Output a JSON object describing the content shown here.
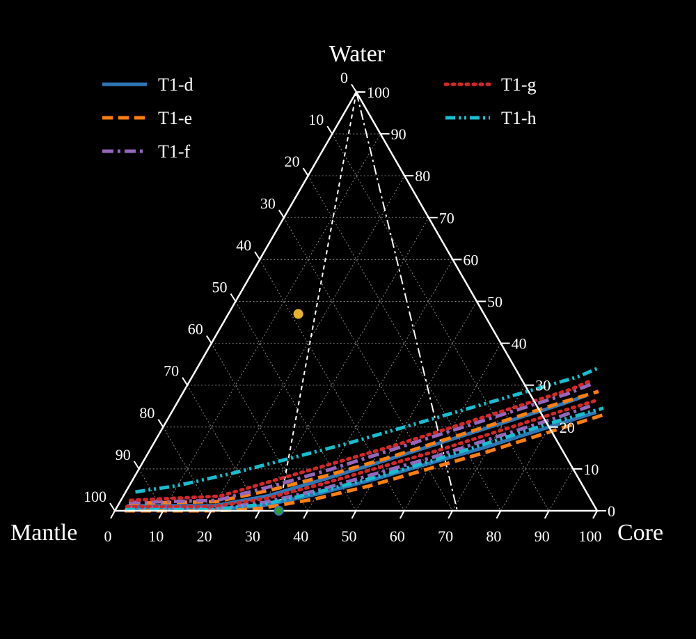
{
  "chart_data": {
    "type": "ternary",
    "axes": {
      "top": "Water",
      "left": "Mantle",
      "right": "Core"
    },
    "ticks": [
      0,
      10,
      20,
      30,
      40,
      50,
      60,
      70,
      80,
      90,
      100
    ],
    "grid": true,
    "reference_lines": [
      {
        "name": "ref-line-1",
        "style": "dashed",
        "color": "#ffffff",
        "points": [
          {
            "core": 0,
            "water": 100
          },
          {
            "core": 34,
            "water": 0
          }
        ]
      },
      {
        "name": "ref-line-2",
        "style": "dashdot",
        "color": "#ffffff",
        "points": [
          {
            "core": 0,
            "water": 100
          },
          {
            "core": 71,
            "water": 0
          }
        ]
      }
    ],
    "legend": {
      "placement": "top",
      "columns": 2
    },
    "series": [
      {
        "name": "T1-d",
        "color": "#2e77b7",
        "style": "solid",
        "curves": [
          [
            {
              "core": 2,
              "water": 0.5
            },
            {
              "core": 20,
              "water": 0.2
            },
            {
              "core": 30,
              "water": 1.2
            },
            {
              "core": 40,
              "water": 4
            },
            {
              "core": 50,
              "water": 7.5
            },
            {
              "core": 60,
              "water": 11.5
            },
            {
              "core": 70,
              "water": 15.5
            },
            {
              "core": 80,
              "water": 20
            },
            {
              "core": 88,
              "water": 23.5
            }
          ],
          [
            {
              "core": 2,
              "water": 1.2
            },
            {
              "core": 20,
              "water": 1.2
            },
            {
              "core": 30,
              "water": 3.6
            },
            {
              "core": 40,
              "water": 7.7
            },
            {
              "core": 50,
              "water": 12
            },
            {
              "core": 60,
              "water": 16.5
            },
            {
              "core": 70,
              "water": 21
            },
            {
              "core": 80,
              "water": 25.5
            },
            {
              "core": 84,
              "water": 27.5
            }
          ]
        ]
      },
      {
        "name": "T1-e",
        "color": "#ff7f0e",
        "style": "dashed",
        "curves": [
          [
            {
              "core": 2,
              "water": 0
            },
            {
              "core": 20,
              "water": 0
            },
            {
              "core": 25,
              "water": 0.2
            },
            {
              "core": 30,
              "water": 0.6
            },
            {
              "core": 40,
              "water": 2.8
            },
            {
              "core": 50,
              "water": 6
            },
            {
              "core": 60,
              "water": 10
            },
            {
              "core": 70,
              "water": 14
            },
            {
              "core": 80,
              "water": 18.5
            },
            {
              "core": 90,
              "water": 23
            }
          ],
          [
            {
              "core": 2,
              "water": 1.8
            },
            {
              "core": 20,
              "water": 2.2
            },
            {
              "core": 30,
              "water": 5
            },
            {
              "core": 40,
              "water": 8.5
            },
            {
              "core": 50,
              "water": 12.5
            },
            {
              "core": 60,
              "water": 17
            },
            {
              "core": 70,
              "water": 21.5
            },
            {
              "core": 80,
              "water": 26
            },
            {
              "core": 86,
              "water": 28.5
            }
          ]
        ]
      },
      {
        "name": "T1-f",
        "color": "#9467bd",
        "style": "dashdot",
        "curves": [
          [
            {
              "core": 2,
              "water": 0.8
            },
            {
              "core": 20,
              "water": 0.5
            },
            {
              "core": 30,
              "water": 2
            },
            {
              "core": 40,
              "water": 5
            },
            {
              "core": 50,
              "water": 9
            },
            {
              "core": 60,
              "water": 13
            },
            {
              "core": 70,
              "water": 17.5
            },
            {
              "core": 80,
              "water": 22
            },
            {
              "core": 86,
              "water": 25
            }
          ],
          [
            {
              "core": 2,
              "water": 2
            },
            {
              "core": 20,
              "water": 2.5
            },
            {
              "core": 30,
              "water": 6
            },
            {
              "core": 40,
              "water": 10
            },
            {
              "core": 50,
              "water": 14.5
            },
            {
              "core": 60,
              "water": 19
            },
            {
              "core": 70,
              "water": 23.5
            },
            {
              "core": 80,
              "water": 28
            },
            {
              "core": 84,
              "water": 30.5
            }
          ]
        ]
      },
      {
        "name": "T1-g",
        "color": "#d62728",
        "style": "dotted",
        "curves": [
          [
            {
              "core": 2,
              "water": 1
            },
            {
              "core": 20,
              "water": 1
            },
            {
              "core": 30,
              "water": 3
            },
            {
              "core": 40,
              "water": 6.5
            },
            {
              "core": 50,
              "water": 10.5
            },
            {
              "core": 60,
              "water": 14.5
            },
            {
              "core": 70,
              "water": 19
            },
            {
              "core": 80,
              "water": 23.5
            },
            {
              "core": 87,
              "water": 26.5
            }
          ],
          [
            {
              "core": 2,
              "water": 2.5
            },
            {
              "core": 20,
              "water": 3.5
            },
            {
              "core": 30,
              "water": 7.5
            },
            {
              "core": 40,
              "water": 11.5
            },
            {
              "core": 50,
              "water": 15.5
            },
            {
              "core": 60,
              "water": 20
            },
            {
              "core": 70,
              "water": 24.5
            },
            {
              "core": 80,
              "water": 29
            },
            {
              "core": 83,
              "water": 31
            }
          ]
        ]
      },
      {
        "name": "T1-h",
        "color": "#17becf",
        "style": "dashdotdot",
        "curves": [
          [
            {
              "core": 2,
              "water": 0.3
            },
            {
              "core": 20,
              "water": 0.3
            },
            {
              "core": 30,
              "water": 1.5
            },
            {
              "core": 40,
              "water": 4.5
            },
            {
              "core": 50,
              "water": 8
            },
            {
              "core": 60,
              "water": 12
            },
            {
              "core": 70,
              "water": 16.5
            },
            {
              "core": 80,
              "water": 21
            },
            {
              "core": 89,
              "water": 24.5
            }
          ],
          [
            {
              "core": 2,
              "water": 4.5
            },
            {
              "core": 10,
              "water": 6
            },
            {
              "core": 20,
              "water": 9
            },
            {
              "core": 30,
              "water": 12.5
            },
            {
              "core": 40,
              "water": 16
            },
            {
              "core": 50,
              "water": 20
            },
            {
              "core": 60,
              "water": 24
            },
            {
              "core": 70,
              "water": 28
            },
            {
              "core": 80,
              "water": 32
            },
            {
              "core": 83,
              "water": 34
            }
          ]
        ]
      }
    ],
    "points": [
      {
        "name": "point-yellow",
        "color": "#e8b32b",
        "core": 14.5,
        "water": 47,
        "outline": "#e8b32b"
      },
      {
        "name": "point-green",
        "color": "#2ca02c",
        "core": 34,
        "water": 0,
        "outline": "#2e77b7"
      }
    ]
  }
}
